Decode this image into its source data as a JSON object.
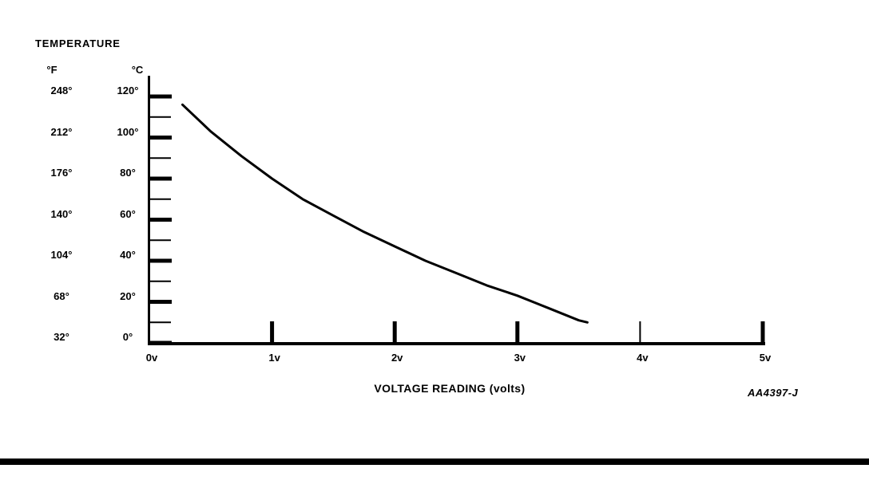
{
  "figure": {
    "title": "TEMPERATURE",
    "x_axis_title": "VOLTAGE READING (volts)",
    "ref_code": "AA4397-J",
    "ink_color": "#000000",
    "background_color": "#ffffff"
  },
  "chart_data": {
    "type": "line",
    "title": "TEMPERATURE",
    "xlabel": "VOLTAGE READING (volts)",
    "y_axis_left_unit": "°F",
    "y_axis_right_unit": "°C",
    "y_tick_labels_f": [
      "248°",
      "212°",
      "176°",
      "140°",
      "104°",
      "68°",
      "32°"
    ],
    "y_tick_labels_c": [
      "120°",
      "100°",
      "80°",
      "60°",
      "40°",
      "20°",
      "0°"
    ],
    "y_major_values_c": [
      120,
      100,
      80,
      60,
      40,
      20,
      0
    ],
    "y_minor_values_c": [
      110,
      90,
      70,
      50,
      30,
      10
    ],
    "x_tick_labels": [
      "0v",
      "1v",
      "2v",
      "3v",
      "4v",
      "5v"
    ],
    "x_tick_values": [
      0,
      1,
      2,
      3,
      4,
      5
    ],
    "xlim": [
      0,
      5
    ],
    "ylim_c": [
      0,
      120
    ],
    "grid": false,
    "legend": false,
    "annotation": "AA4397-J",
    "series": [
      {
        "name": "temperature-vs-voltage",
        "x_volts": [
          0.27,
          0.5,
          0.75,
          1.0,
          1.25,
          1.5,
          1.75,
          2.0,
          2.25,
          2.5,
          2.75,
          3.0,
          3.25,
          3.5,
          3.57
        ],
        "y_temp_c": [
          116,
          103,
          91,
          80,
          70,
          62,
          54,
          47,
          40,
          34,
          28,
          23,
          17,
          11,
          10
        ]
      }
    ]
  }
}
